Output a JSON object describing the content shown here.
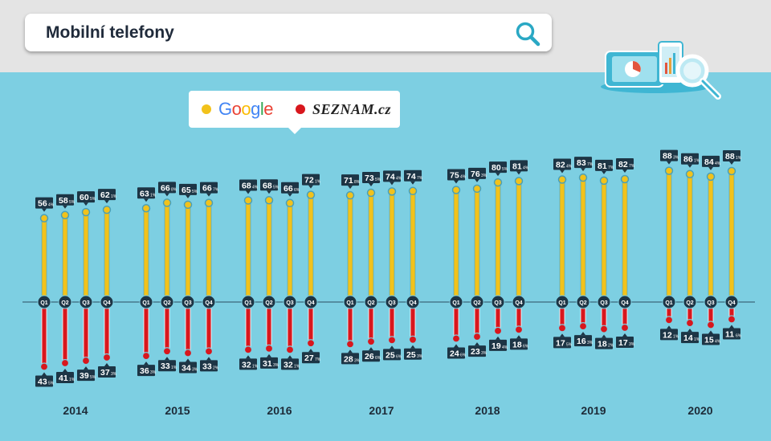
{
  "search": {
    "query": "Mobilní telefony"
  },
  "icons": {
    "search": "search-icon",
    "illustration": "devices-magnifier-icon"
  },
  "legend": [
    {
      "name": "Google",
      "color": "#f2c21b"
    },
    {
      "name": "SEZNAM.cz",
      "color": "#d8171d"
    }
  ],
  "colors": {
    "background": "#7dcfe2",
    "top_band": "#e4e4e4",
    "google_bar": "#f2c21b",
    "seznam_bar": "#d8171d",
    "label_box": "#1d3545",
    "axis": "#2c4e60",
    "quarter_marker": "#1d3545"
  },
  "chart_data": {
    "type": "bar",
    "title": "",
    "xlabel": "",
    "ylabel": "",
    "ylim": [
      -50,
      100
    ],
    "years": [
      "2014",
      "2015",
      "2016",
      "2017",
      "2018",
      "2019",
      "2020"
    ],
    "quarters": [
      "Q1",
      "Q2",
      "Q3",
      "Q4"
    ],
    "series": [
      {
        "name": "Google",
        "values": [
          [
            56.4,
            58.5,
            60.5,
            62.1
          ],
          [
            63.1,
            66.8,
            65.5,
            66.7
          ],
          [
            68.4,
            68.5,
            66.6,
            72.1
          ],
          [
            71.8,
            73.5,
            74.4,
            74.7
          ],
          [
            75.4,
            76.3,
            80.5,
            81.4
          ],
          [
            82.4,
            83.7,
            81.7,
            82.7
          ],
          [
            88.3,
            86.1,
            84.4,
            88.1
          ]
        ],
        "labels": [
          [
            [
              "56",
              "4%"
            ],
            [
              "58",
              "5%"
            ],
            [
              "60",
              "5%"
            ],
            [
              "62",
              "1%"
            ]
          ],
          [
            [
              "63",
              "1%"
            ],
            [
              "66",
              "8%"
            ],
            [
              "65",
              "5%"
            ],
            [
              "66",
              "7%"
            ]
          ],
          [
            [
              "68",
              "4%"
            ],
            [
              "68",
              "5%"
            ],
            [
              "66",
              "6%"
            ],
            [
              "72",
              "1%"
            ]
          ],
          [
            [
              "71",
              "8%"
            ],
            [
              "73",
              "5%"
            ],
            [
              "74",
              "4%"
            ],
            [
              "74",
              "7%"
            ]
          ],
          [
            [
              "75",
              "4%"
            ],
            [
              "76",
              "3%"
            ],
            [
              "80",
              "5%"
            ],
            [
              "81",
              "4%"
            ]
          ],
          [
            [
              "82",
              "4%"
            ],
            [
              "83",
              "7%"
            ],
            [
              "81",
              "7%"
            ],
            [
              "82",
              "7%"
            ]
          ],
          [
            [
              "88",
              "3%"
            ],
            [
              "86",
              "1%"
            ],
            [
              "84",
              "4%"
            ],
            [
              "88",
              "1%"
            ]
          ]
        ]
      },
      {
        "name": "SEZNAM.cz",
        "values": [
          [
            43.5,
            41.1,
            39.5,
            37.3
          ],
          [
            36.3,
            33.1,
            34.3,
            33.2
          ],
          [
            32.1,
            31.3,
            32.1,
            27.7
          ],
          [
            28.3,
            26.6,
            25.6,
            25.3
          ],
          [
            24.6,
            23.3,
            19.4,
            18.6
          ],
          [
            17.5,
            16.3,
            18.2,
            17.3
          ],
          [
            12.1,
            14.1,
            15.4,
            11.6
          ]
        ],
        "labels": [
          [
            [
              "43",
              "5%"
            ],
            [
              "41",
              "1%"
            ],
            [
              "39",
              "5%"
            ],
            [
              "37",
              "3%"
            ]
          ],
          [
            [
              "36",
              "3%"
            ],
            [
              "33",
              "1%"
            ],
            [
              "34",
              "3%"
            ],
            [
              "33",
              "2%"
            ]
          ],
          [
            [
              "32",
              "1%"
            ],
            [
              "31",
              "3%"
            ],
            [
              "32",
              "1%"
            ],
            [
              "27",
              "7%"
            ]
          ],
          [
            [
              "28",
              "3%"
            ],
            [
              "26",
              "6%"
            ],
            [
              "25",
              "6%"
            ],
            [
              "25",
              "3%"
            ]
          ],
          [
            [
              "24",
              "6%"
            ],
            [
              "23",
              "3%"
            ],
            [
              "19",
              "4%"
            ],
            [
              "18",
              "6%"
            ]
          ],
          [
            [
              "17",
              "5%"
            ],
            [
              "16",
              "3%"
            ],
            [
              "18",
              "2%"
            ],
            [
              "17",
              "3%"
            ]
          ],
          [
            [
              "12",
              "1%"
            ],
            [
              "14",
              "1%"
            ],
            [
              "15",
              "4%"
            ],
            [
              "11",
              "6%"
            ]
          ]
        ]
      }
    ],
    "grid": false,
    "legend_position": "top-left"
  }
}
